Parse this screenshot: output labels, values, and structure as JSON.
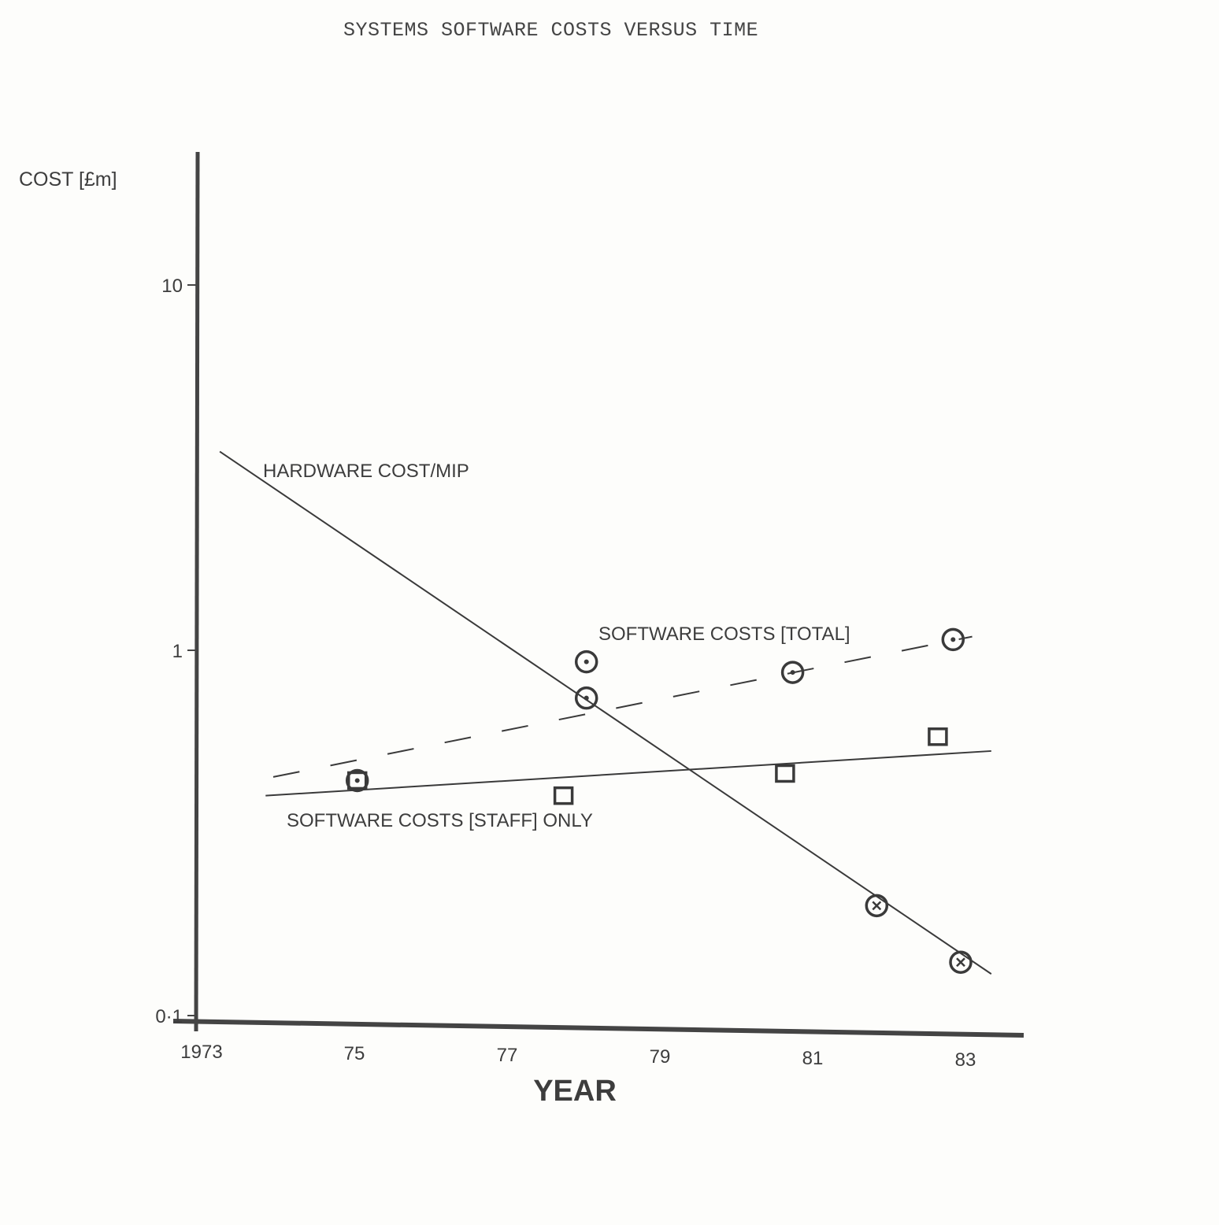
{
  "chart_data": {
    "type": "line",
    "title": "SYSTEMS SOFTWARE COSTS VERSUS TIME",
    "xlabel": "YEAR",
    "ylabel": "COST [£m]",
    "yscale": "log",
    "ylim": [
      0.1,
      20
    ],
    "xlim": [
      1973,
      1984
    ],
    "grid": false,
    "x_ticks": [
      1973,
      1975,
      1977,
      1979,
      1981,
      1983
    ],
    "x_tick_labels": [
      "1973",
      "75",
      "77",
      "79",
      "81",
      "83"
    ],
    "y_ticks": [
      0.1,
      1,
      10
    ],
    "y_tick_labels": [
      "0·1",
      "1",
      "10"
    ],
    "series": [
      {
        "name": "HARDWARE COST/MIP",
        "line_style": "solid",
        "marker": "circle-x",
        "fit_line": [
          [
            1973.3,
            3.5
          ],
          [
            1983.4,
            0.13
          ]
        ],
        "points": [
          [
            1981.9,
            0.2
          ],
          [
            1983.0,
            0.14
          ]
        ]
      },
      {
        "name": "SOFTWARE COSTS [TOTAL]",
        "line_style": "dashed",
        "marker": "circle-dot",
        "fit_line": [
          [
            1974.0,
            0.45
          ],
          [
            1983.15,
            1.09
          ]
        ],
        "points": [
          [
            1975.1,
            0.44
          ],
          [
            1978.1,
            0.74
          ],
          [
            1978.1,
            0.93
          ],
          [
            1980.8,
            0.87
          ],
          [
            1982.9,
            1.07
          ]
        ]
      },
      {
        "name": "SOFTWARE COSTS [STAFF] ONLY",
        "line_style": "solid",
        "marker": "square",
        "fit_line": [
          [
            1973.9,
            0.4
          ],
          [
            1983.4,
            0.53
          ]
        ],
        "points": [
          [
            1975.1,
            0.44
          ],
          [
            1977.8,
            0.4
          ],
          [
            1980.7,
            0.46
          ],
          [
            1982.7,
            0.58
          ]
        ]
      }
    ],
    "colors": {
      "ink": "#3a3a3a",
      "paper": "#fdfdfb"
    }
  }
}
